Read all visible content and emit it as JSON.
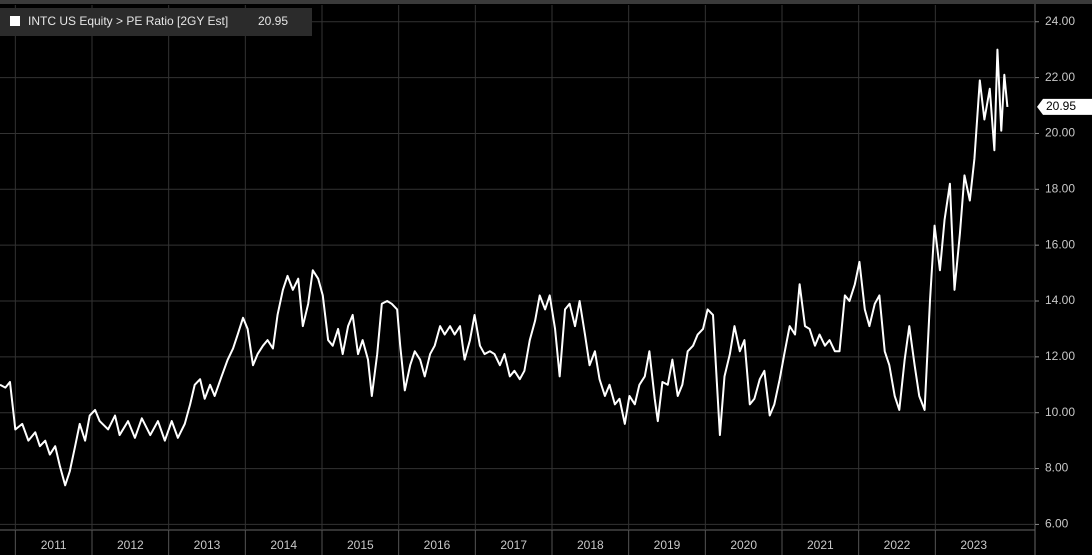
{
  "chart_data": {
    "type": "line",
    "x": [
      2010.8,
      2010.87,
      2010.93,
      2011.0,
      2011.09,
      2011.17,
      2011.26,
      2011.32,
      2011.39,
      2011.45,
      2011.52,
      2011.58,
      2011.65,
      2011.71,
      2011.78,
      2011.84,
      2011.91,
      2011.97,
      2012.04,
      2012.1,
      2012.21,
      2012.3,
      2012.36,
      2012.47,
      2012.56,
      2012.65,
      2012.76,
      2012.86,
      2012.95,
      2013.04,
      2013.12,
      2013.21,
      2013.28,
      2013.34,
      2013.41,
      2013.47,
      2013.54,
      2013.6,
      2013.69,
      2013.77,
      2013.84,
      2013.9,
      2013.97,
      2014.03,
      2014.1,
      2014.16,
      2014.23,
      2014.29,
      2014.36,
      2014.42,
      2014.49,
      2014.55,
      2014.62,
      2014.69,
      2014.75,
      2014.82,
      2014.88,
      2014.95,
      2015.01,
      2015.08,
      2015.14,
      2015.21,
      2015.27,
      2015.34,
      2015.4,
      2015.47,
      2015.53,
      2015.6,
      2015.65,
      2015.72,
      2015.78,
      2015.85,
      2015.91,
      2015.98,
      2016.02,
      2016.08,
      2016.15,
      2016.21,
      2016.28,
      2016.34,
      2016.41,
      2016.47,
      2016.54,
      2016.6,
      2016.67,
      2016.73,
      2016.8,
      2016.86,
      2016.93,
      2016.99,
      2017.06,
      2017.12,
      2017.19,
      2017.25,
      2017.32,
      2017.38,
      2017.45,
      2017.51,
      2017.58,
      2017.64,
      2017.71,
      2017.78,
      2017.84,
      2017.91,
      2017.97,
      2018.04,
      2018.1,
      2018.17,
      2018.23,
      2018.3,
      2018.36,
      2018.43,
      2018.49,
      2018.56,
      2018.62,
      2018.69,
      2018.75,
      2018.82,
      2018.88,
      2018.95,
      2019.01,
      2019.08,
      2019.14,
      2019.21,
      2019.27,
      2019.34,
      2019.38,
      2019.44,
      2019.51,
      2019.57,
      2019.64,
      2019.7,
      2019.77,
      2019.84,
      2019.9,
      2019.97,
      2020.03,
      2020.1,
      2020.15,
      2020.19,
      2020.25,
      2020.32,
      2020.38,
      2020.45,
      2020.51,
      2020.58,
      2020.64,
      2020.71,
      2020.77,
      2020.84,
      2020.9,
      2020.97,
      2021.03,
      2021.1,
      2021.17,
      2021.23,
      2021.3,
      2021.36,
      2021.43,
      2021.49,
      2021.56,
      2021.62,
      2021.69,
      2021.75,
      2021.82,
      2021.88,
      2021.95,
      2022.01,
      2022.08,
      2022.14,
      2022.21,
      2022.27,
      2022.34,
      2022.4,
      2022.47,
      2022.53,
      2022.6,
      2022.66,
      2022.73,
      2022.79,
      2022.86,
      2022.93,
      2022.99,
      2023.06,
      2023.12,
      2023.19,
      2023.25,
      2023.32,
      2023.38,
      2023.45,
      2023.51,
      2023.58,
      2023.64,
      2023.71,
      2023.77,
      2023.81,
      2023.86,
      2023.9,
      2023.94
    ],
    "series": [
      {
        "name": "INTC US Equity > PE Ratio [2GY Est]",
        "color": "#ffffff",
        "values": [
          11.0,
          10.9,
          11.1,
          9.4,
          9.6,
          9.0,
          9.3,
          8.8,
          9.0,
          8.5,
          8.8,
          8.1,
          7.4,
          7.9,
          8.8,
          9.6,
          9.0,
          9.9,
          10.1,
          9.7,
          9.4,
          9.9,
          9.2,
          9.7,
          9.1,
          9.8,
          9.2,
          9.7,
          9.0,
          9.7,
          9.1,
          9.6,
          10.3,
          11.0,
          11.2,
          10.5,
          11.0,
          10.6,
          11.3,
          11.9,
          12.3,
          12.8,
          13.4,
          13.0,
          11.7,
          12.1,
          12.4,
          12.6,
          12.3,
          13.5,
          14.4,
          14.9,
          14.4,
          14.8,
          13.1,
          13.9,
          15.1,
          14.8,
          14.2,
          12.6,
          12.4,
          13.0,
          12.1,
          13.1,
          13.5,
          12.1,
          12.6,
          11.9,
          10.6,
          12.1,
          13.9,
          14.0,
          13.9,
          13.7,
          12.4,
          10.8,
          11.7,
          12.2,
          11.9,
          11.3,
          12.1,
          12.4,
          13.1,
          12.8,
          13.1,
          12.8,
          13.1,
          11.9,
          12.6,
          13.5,
          12.4,
          12.1,
          12.2,
          12.1,
          11.7,
          12.1,
          11.3,
          11.5,
          11.2,
          11.5,
          12.6,
          13.3,
          14.2,
          13.7,
          14.2,
          13.0,
          11.3,
          13.7,
          13.9,
          13.1,
          14.0,
          12.8,
          11.7,
          12.2,
          11.2,
          10.6,
          11.0,
          10.3,
          10.5,
          9.6,
          10.6,
          10.3,
          11.0,
          11.3,
          12.2,
          10.5,
          9.7,
          11.1,
          11.0,
          11.9,
          10.6,
          11.0,
          12.2,
          12.4,
          12.8,
          13.0,
          13.7,
          13.5,
          11.1,
          9.2,
          11.3,
          12.1,
          13.1,
          12.2,
          12.6,
          10.3,
          10.5,
          11.2,
          11.5,
          9.9,
          10.3,
          11.2,
          12.1,
          13.1,
          12.8,
          14.6,
          13.1,
          13.0,
          12.4,
          12.8,
          12.4,
          12.6,
          12.2,
          12.2,
          14.2,
          14.0,
          14.6,
          15.4,
          13.7,
          13.1,
          13.9,
          14.2,
          12.2,
          11.7,
          10.6,
          10.1,
          11.9,
          13.1,
          11.7,
          10.6,
          10.1,
          14.0,
          16.7,
          15.1,
          16.9,
          18.2,
          14.4,
          16.4,
          18.5,
          17.6,
          19.1,
          21.9,
          20.5,
          21.6,
          19.4,
          23.0,
          20.1,
          22.1,
          20.95
        ]
      }
    ],
    "xlim": [
      2010.8,
      2024.3
    ],
    "xticks": [
      2011,
      2012,
      2013,
      2014,
      2015,
      2016,
      2017,
      2018,
      2019,
      2020,
      2021,
      2022,
      2023
    ],
    "ylim": [
      5.8,
      24.6
    ],
    "yticks": [
      {
        "value": 6,
        "label": "6.00"
      },
      {
        "value": 8,
        "label": "8.00"
      },
      {
        "value": 10,
        "label": "10.00"
      },
      {
        "value": 12,
        "label": "12.00"
      },
      {
        "value": 14,
        "label": "14.00"
      },
      {
        "value": 16,
        "label": "16.00"
      },
      {
        "value": 18,
        "label": "18.00"
      },
      {
        "value": 20,
        "label": "20.00"
      },
      {
        "value": 22,
        "label": "22.00"
      },
      {
        "value": 24,
        "label": "24.00"
      }
    ],
    "grid": true
  }
}
